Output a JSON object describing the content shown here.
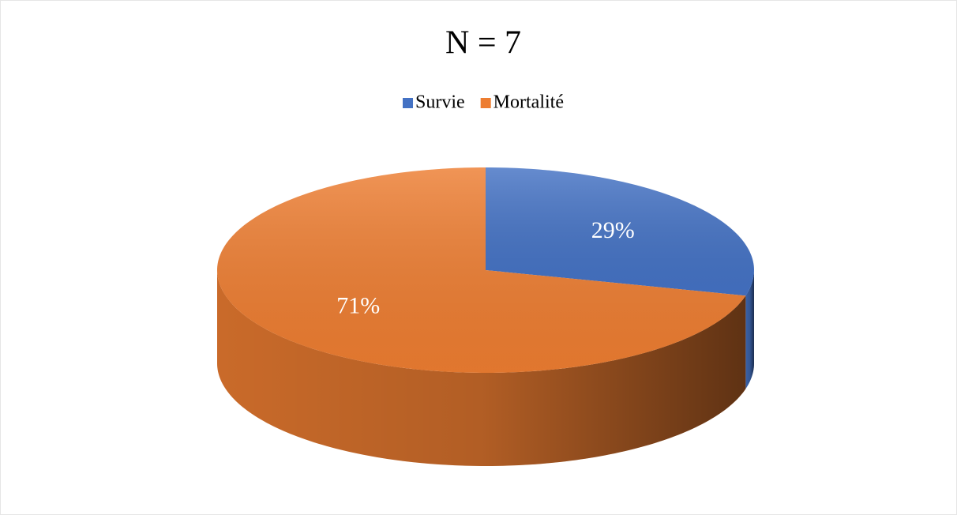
{
  "chart_data": {
    "type": "pie",
    "title": "N = 7",
    "categories": [
      "Survie",
      "Mortalité"
    ],
    "values": [
      29,
      71
    ],
    "value_labels": [
      "29%",
      "71%"
    ],
    "colors": [
      "#4472c4",
      "#ed7d31"
    ],
    "legend": "top"
  }
}
